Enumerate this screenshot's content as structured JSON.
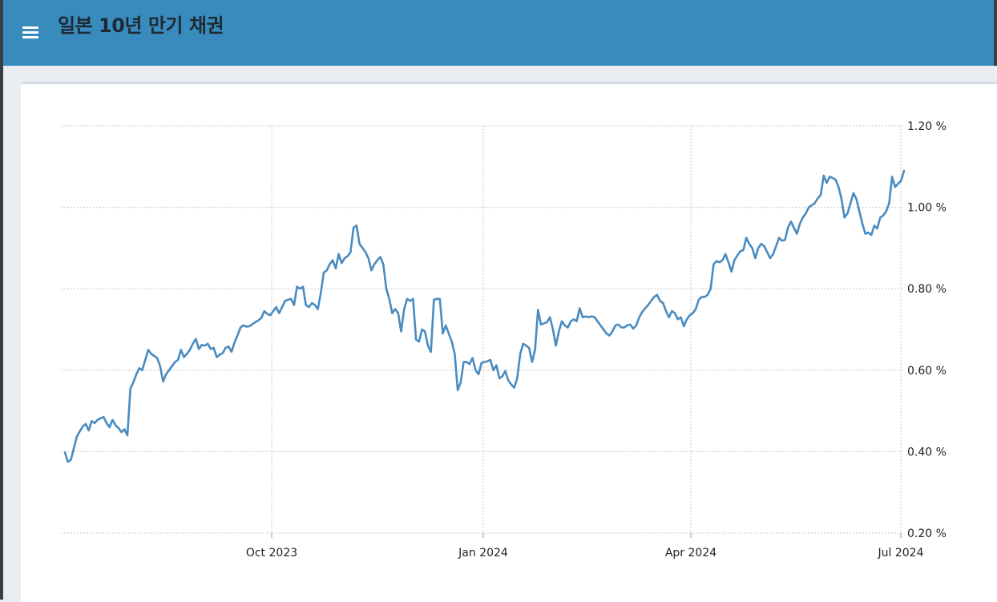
{
  "header": {
    "title": "일본 10년 만기 채권",
    "menu_icon": "hamburger-menu-icon",
    "background_color": "#3a8bbd"
  },
  "chart_data": {
    "type": "line",
    "title": "",
    "xlabel": "",
    "ylabel": "",
    "ylim": [
      0.2,
      1.2
    ],
    "y_ticks": [
      1.2,
      1.0,
      0.8,
      0.6,
      0.4,
      0.2
    ],
    "y_tick_labels": [
      "1.20 %",
      "1.00 %",
      "0.80 %",
      "0.60 %",
      "0.40 %",
      "0.20 %"
    ],
    "x_ticks": [
      "Oct 2023",
      "Jan 2024",
      "Apr 2024",
      "Jul 2024"
    ],
    "grid": true,
    "series": [
      {
        "color": "#4a8bc0",
        "values": [
          0.398,
          0.375,
          0.38,
          0.408,
          0.437,
          0.45,
          0.462,
          0.468,
          0.452,
          0.475,
          0.47,
          0.478,
          0.482,
          0.485,
          0.47,
          0.46,
          0.478,
          0.465,
          0.458,
          0.448,
          0.455,
          0.44,
          0.555,
          0.57,
          0.59,
          0.605,
          0.6,
          0.625,
          0.65,
          0.64,
          0.635,
          0.63,
          0.61,
          0.572,
          0.59,
          0.6,
          0.61,
          0.62,
          0.625,
          0.65,
          0.632,
          0.64,
          0.65,
          0.665,
          0.677,
          0.652,
          0.662,
          0.66,
          0.665,
          0.652,
          0.655,
          0.632,
          0.638,
          0.642,
          0.655,
          0.658,
          0.645,
          0.668,
          0.685,
          0.705,
          0.71,
          0.707,
          0.708,
          0.713,
          0.718,
          0.722,
          0.728,
          0.745,
          0.738,
          0.735,
          0.745,
          0.755,
          0.74,
          0.755,
          0.77,
          0.773,
          0.775,
          0.76,
          0.805,
          0.8,
          0.805,
          0.76,
          0.755,
          0.765,
          0.76,
          0.75,
          0.79,
          0.84,
          0.845,
          0.86,
          0.87,
          0.85,
          0.885,
          0.863,
          0.875,
          0.88,
          0.89,
          0.95,
          0.955,
          0.91,
          0.9,
          0.89,
          0.875,
          0.845,
          0.86,
          0.87,
          0.878,
          0.86,
          0.8,
          0.775,
          0.74,
          0.75,
          0.74,
          0.695,
          0.75,
          0.775,
          0.77,
          0.775,
          0.675,
          0.67,
          0.7,
          0.695,
          0.66,
          0.645,
          0.773,
          0.775,
          0.775,
          0.69,
          0.71,
          0.69,
          0.67,
          0.64,
          0.551,
          0.57,
          0.62,
          0.62,
          0.615,
          0.63,
          0.6,
          0.59,
          0.618,
          0.62,
          0.622,
          0.625,
          0.6,
          0.612,
          0.58,
          0.585,
          0.598,
          0.575,
          0.565,
          0.557,
          0.58,
          0.64,
          0.665,
          0.66,
          0.655,
          0.62,
          0.65,
          0.748,
          0.712,
          0.715,
          0.718,
          0.73,
          0.7,
          0.66,
          0.695,
          0.72,
          0.71,
          0.705,
          0.72,
          0.725,
          0.72,
          0.752,
          0.73,
          0.732,
          0.73,
          0.732,
          0.73,
          0.72,
          0.71,
          0.7,
          0.69,
          0.685,
          0.695,
          0.71,
          0.712,
          0.705,
          0.705,
          0.71,
          0.712,
          0.702,
          0.71,
          0.73,
          0.743,
          0.752,
          0.76,
          0.77,
          0.78,
          0.785,
          0.77,
          0.765,
          0.745,
          0.73,
          0.745,
          0.74,
          0.725,
          0.73,
          0.708,
          0.725,
          0.735,
          0.74,
          0.75,
          0.773,
          0.78,
          0.78,
          0.785,
          0.8,
          0.86,
          0.868,
          0.865,
          0.87,
          0.885,
          0.865,
          0.842,
          0.87,
          0.882,
          0.892,
          0.895,
          0.925,
          0.91,
          0.9,
          0.875,
          0.9,
          0.91,
          0.905,
          0.89,
          0.875,
          0.885,
          0.905,
          0.925,
          0.918,
          0.92,
          0.95,
          0.965,
          0.95,
          0.935,
          0.96,
          0.975,
          0.985,
          1.0,
          1.005,
          1.01,
          1.022,
          1.03,
          1.078,
          1.06,
          1.075,
          1.072,
          1.068,
          1.05,
          1.02,
          0.975,
          0.985,
          1.01,
          1.035,
          1.02,
          0.99,
          0.96,
          0.935,
          0.938,
          0.932,
          0.955,
          0.948,
          0.975,
          0.98,
          0.99,
          1.01,
          1.075,
          1.05,
          1.058,
          1.065,
          1.09
        ]
      }
    ]
  }
}
